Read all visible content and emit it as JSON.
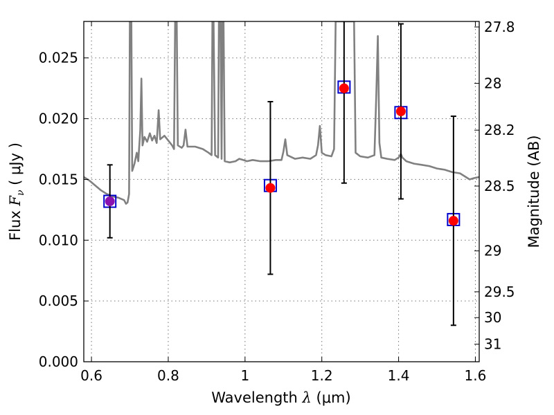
{
  "chart_data": {
    "type": "scatter",
    "xlabel_main": "Wavelength  ",
    "xlabel_lambda": "λ",
    "xlabel_unit": " (μm)",
    "ylabel_main": "Flux  ",
    "ylabel_f": "F",
    "ylabel_nu": "ν",
    "ylabel_unit": "  ( μJy )",
    "y2label": "Magnitude (AB)",
    "xlim": [
      0.58,
      1.61
    ],
    "ylim": [
      0.0,
      0.028
    ],
    "x_ticks": [
      0.6,
      0.8,
      1.0,
      1.2,
      1.4,
      1.6
    ],
    "x_tick_labels": [
      "0.6",
      "0.8",
      "1",
      "1.2",
      "1.4",
      "1.6"
    ],
    "y_ticks": [
      0.0,
      0.005,
      0.01,
      0.015,
      0.02,
      0.025
    ],
    "y_tick_labels": [
      "0.000",
      "0.005",
      "0.010",
      "0.015",
      "0.020",
      "0.025"
    ],
    "mag_ticks": [
      27.8,
      28,
      28.2,
      28.5,
      29,
      29.5,
      30,
      31
    ],
    "mag_tick_labels": [
      "27.8",
      "28",
      "28.2",
      "28.5",
      "29",
      "29.5",
      "30",
      "31"
    ],
    "grid": true,
    "colors": {
      "model": "#808080",
      "point": "#ff0000",
      "first_point": "#8b10b0",
      "box": "#0000cc",
      "errorbar": "#000000"
    },
    "observed": [
      {
        "x": 0.648,
        "y": 0.0132,
        "yerr": 0.003
      },
      {
        "x": 1.066,
        "y": 0.0143,
        "yerr": 0.0071
      },
      {
        "x": 1.258,
        "y": 0.0225,
        "yerr": 0.0078
      },
      {
        "x": 1.406,
        "y": 0.0206,
        "yerr": 0.0072
      },
      {
        "x": 1.543,
        "y": 0.0116,
        "yerr": 0.0086
      }
    ],
    "model_boxes": [
      {
        "x": 0.648,
        "y": 0.0132
      },
      {
        "x": 1.066,
        "y": 0.0145
      },
      {
        "x": 1.258,
        "y": 0.0226
      },
      {
        "x": 1.406,
        "y": 0.0205
      },
      {
        "x": 1.543,
        "y": 0.0117
      }
    ],
    "model_spectrum": [
      [
        0.58,
        0.0152
      ],
      [
        0.595,
        0.0149
      ],
      [
        0.61,
        0.0145
      ],
      [
        0.625,
        0.0141
      ],
      [
        0.64,
        0.0138
      ],
      [
        0.655,
        0.0136
      ],
      [
        0.67,
        0.0135
      ],
      [
        0.685,
        0.0133
      ],
      [
        0.69,
        0.013
      ],
      [
        0.694,
        0.0131
      ],
      [
        0.698,
        0.0138
      ],
      [
        0.7,
        0.028
      ],
      [
        0.704,
        0.028
      ],
      [
        0.706,
        0.0157
      ],
      [
        0.712,
        0.0163
      ],
      [
        0.718,
        0.0172
      ],
      [
        0.722,
        0.0165
      ],
      [
        0.727,
        0.019
      ],
      [
        0.73,
        0.0233
      ],
      [
        0.733,
        0.0178
      ],
      [
        0.738,
        0.0185
      ],
      [
        0.745,
        0.0181
      ],
      [
        0.752,
        0.0188
      ],
      [
        0.758,
        0.0182
      ],
      [
        0.764,
        0.0186
      ],
      [
        0.77,
        0.018
      ],
      [
        0.775,
        0.0207
      ],
      [
        0.779,
        0.0183
      ],
      [
        0.79,
        0.0186
      ],
      [
        0.8,
        0.0182
      ],
      [
        0.81,
        0.0178
      ],
      [
        0.815,
        0.0175
      ],
      [
        0.818,
        0.028
      ],
      [
        0.822,
        0.028
      ],
      [
        0.825,
        0.0178
      ],
      [
        0.835,
        0.0176
      ],
      [
        0.84,
        0.0178
      ],
      [
        0.845,
        0.0191
      ],
      [
        0.85,
        0.0177
      ],
      [
        0.87,
        0.0177
      ],
      [
        0.89,
        0.0175
      ],
      [
        0.905,
        0.0172
      ],
      [
        0.913,
        0.017
      ],
      [
        0.915,
        0.028
      ],
      [
        0.918,
        0.028
      ],
      [
        0.922,
        0.017
      ],
      [
        0.93,
        0.0168
      ],
      [
        0.932,
        0.028
      ],
      [
        0.936,
        0.028
      ],
      [
        0.939,
        0.0167
      ],
      [
        0.941,
        0.028
      ],
      [
        0.944,
        0.028
      ],
      [
        0.947,
        0.0165
      ],
      [
        0.96,
        0.0164
      ],
      [
        0.975,
        0.0165
      ],
      [
        0.985,
        0.0167
      ],
      [
        0.995,
        0.0166
      ],
      [
        1.005,
        0.0165
      ],
      [
        1.02,
        0.0166
      ],
      [
        1.04,
        0.0165
      ],
      [
        1.06,
        0.0165
      ],
      [
        1.08,
        0.0166
      ],
      [
        1.095,
        0.0166
      ],
      [
        1.1,
        0.0173
      ],
      [
        1.105,
        0.0183
      ],
      [
        1.11,
        0.017
      ],
      [
        1.13,
        0.0167
      ],
      [
        1.15,
        0.0168
      ],
      [
        1.17,
        0.0167
      ],
      [
        1.185,
        0.017
      ],
      [
        1.19,
        0.0178
      ],
      [
        1.195,
        0.0194
      ],
      [
        1.2,
        0.0172
      ],
      [
        1.21,
        0.017
      ],
      [
        1.225,
        0.0169
      ],
      [
        1.232,
        0.0175
      ],
      [
        1.236,
        0.028
      ],
      [
        1.284,
        0.028
      ],
      [
        1.288,
        0.0172
      ],
      [
        1.3,
        0.0169
      ],
      [
        1.32,
        0.0168
      ],
      [
        1.337,
        0.017
      ],
      [
        1.342,
        0.022
      ],
      [
        1.346,
        0.0268
      ],
      [
        1.35,
        0.018
      ],
      [
        1.355,
        0.0168
      ],
      [
        1.37,
        0.0167
      ],
      [
        1.39,
        0.0166
      ],
      [
        1.4,
        0.0168
      ],
      [
        1.406,
        0.0171
      ],
      [
        1.41,
        0.0168
      ],
      [
        1.42,
        0.0165
      ],
      [
        1.44,
        0.0163
      ],
      [
        1.46,
        0.0162
      ],
      [
        1.48,
        0.0161
      ],
      [
        1.5,
        0.0159
      ],
      [
        1.52,
        0.0158
      ],
      [
        1.54,
        0.0156
      ],
      [
        1.56,
        0.0155
      ],
      [
        1.575,
        0.0152
      ],
      [
        1.585,
        0.015
      ],
      [
        1.595,
        0.0151
      ],
      [
        1.61,
        0.0152
      ]
    ]
  }
}
